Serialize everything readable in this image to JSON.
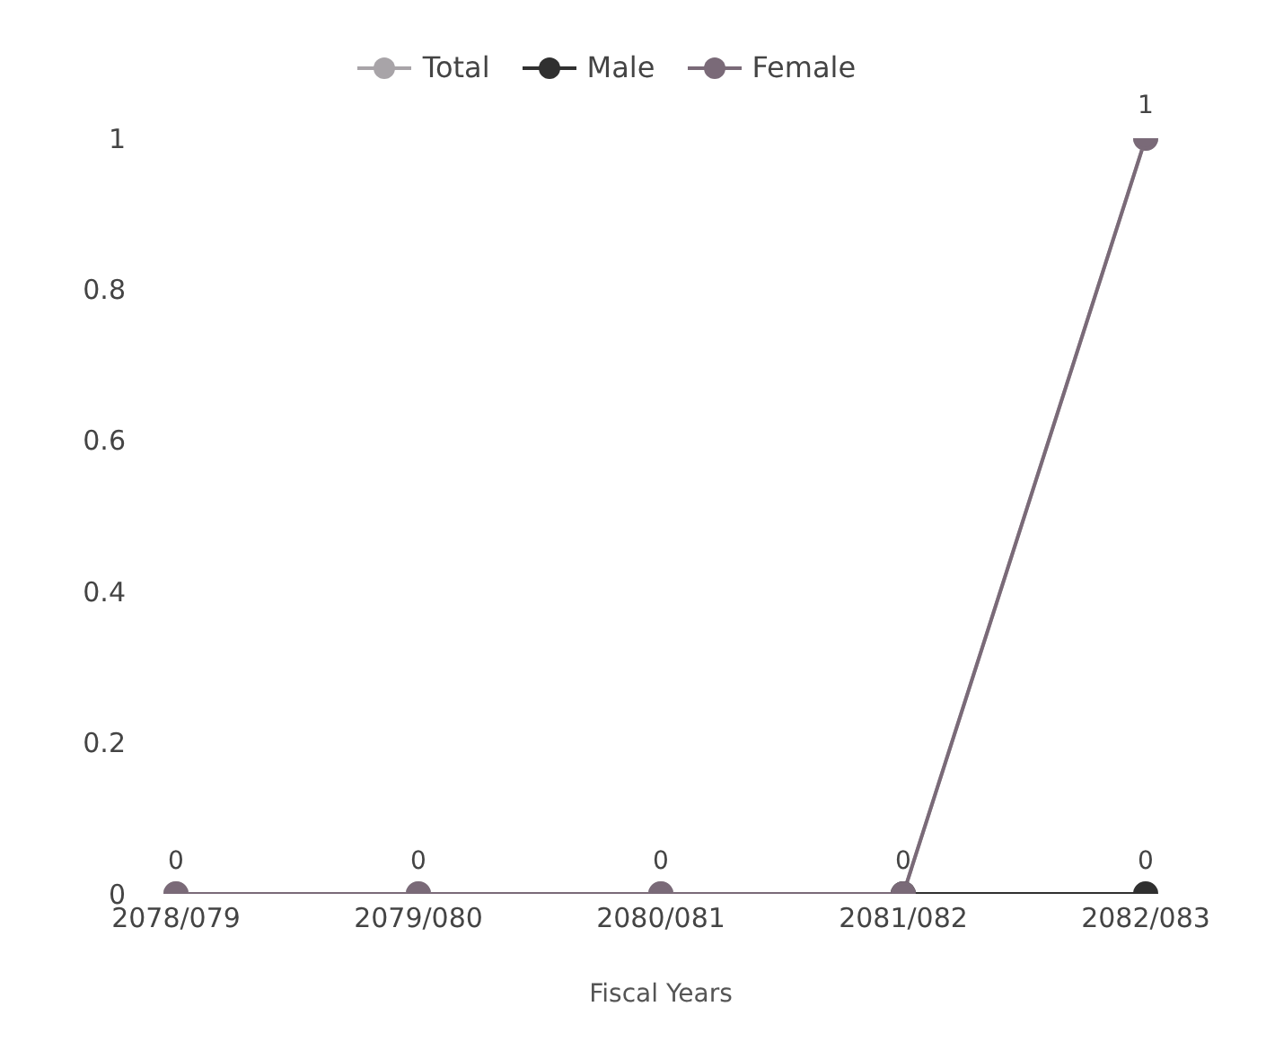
{
  "chart_data": {
    "type": "line",
    "xlabel": "Fiscal Years",
    "categories": [
      "2078/079",
      "2079/080",
      "2080/081",
      "2081/082",
      "2082/083"
    ],
    "series": [
      {
        "name": "Total",
        "color": "#a8a4a8",
        "values": [
          0,
          0,
          0,
          0,
          1
        ]
      },
      {
        "name": "Male",
        "color": "#303030",
        "values": [
          null,
          null,
          null,
          0,
          0
        ],
        "value_labels": [
          null,
          null,
          null,
          null,
          "0"
        ]
      },
      {
        "name": "Female",
        "color": "#7a6a78",
        "values": [
          0,
          0,
          0,
          0,
          1
        ],
        "value_labels": [
          "0",
          "0",
          "0",
          "0",
          "1"
        ]
      }
    ],
    "ylim": [
      0,
      1
    ],
    "yticks": [
      0,
      0.2,
      0.4,
      0.6,
      0.8,
      1
    ],
    "grid": false,
    "legend": "top",
    "marker": "circle",
    "line_style": "solid"
  }
}
